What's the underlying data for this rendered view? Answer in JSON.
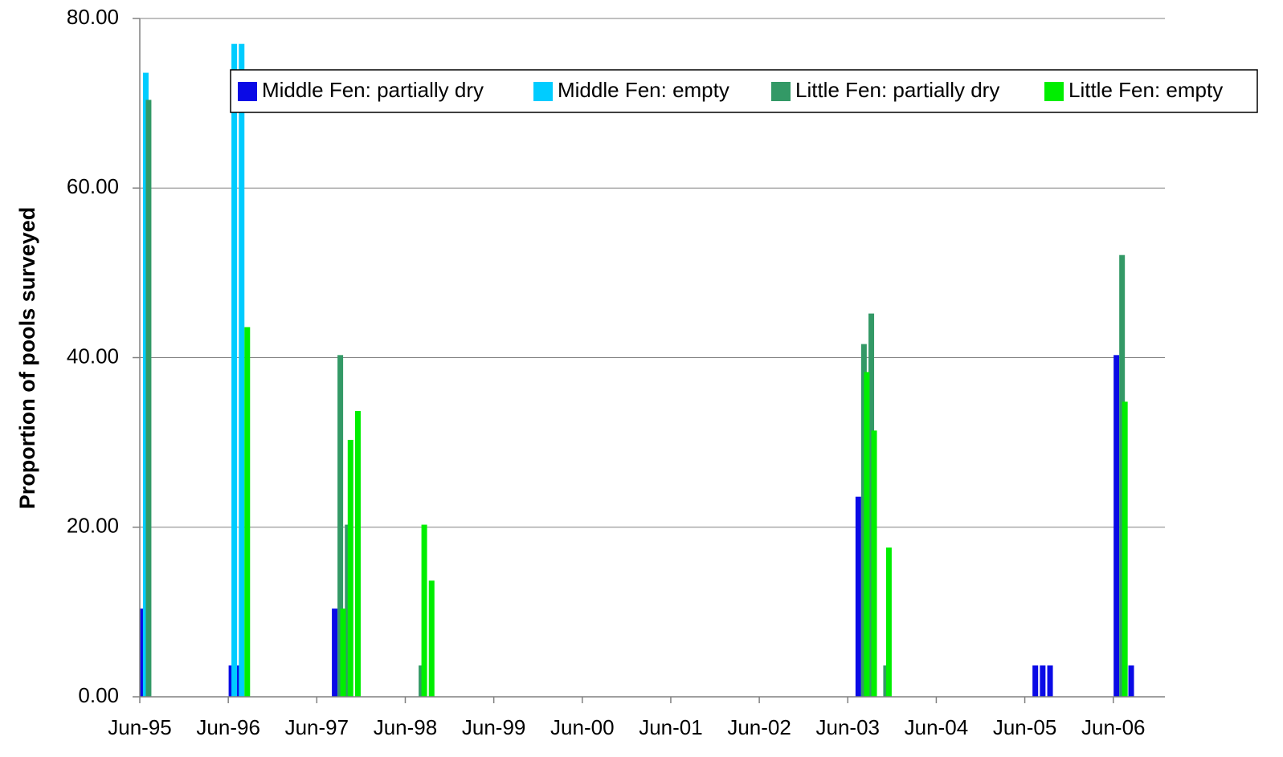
{
  "chart_data": {
    "type": "bar",
    "y_label": "Proportion of pools surveyed",
    "x": [
      "1995-07",
      "1996-07",
      "1996-08",
      "1997-09",
      "1997-10",
      "1997-11",
      "1998-08",
      "1998-09",
      "2003-08",
      "2003-09",
      "2003-11",
      "2005-08",
      "2005-09",
      "2005-10",
      "2006-07",
      "2006-09"
    ],
    "series": [
      {
        "name": "Middle Fen: partially dry",
        "color": "#0a0ae6",
        "values": [
          10.4,
          3.7,
          3.7,
          10.4,
          null,
          null,
          null,
          null,
          23.6,
          null,
          null,
          3.7,
          3.7,
          3.7,
          40.3,
          3.7
        ]
      },
      {
        "name": "Middle Fen: empty",
        "color": "#00ccff",
        "values": [
          73.6,
          77.0,
          77.0,
          null,
          null,
          null,
          null,
          null,
          null,
          null,
          null,
          null,
          null,
          null,
          null,
          null
        ]
      },
      {
        "name": "Little Fen: partially dry",
        "color": "#339966",
        "values": [
          70.4,
          null,
          null,
          40.3,
          20.3,
          null,
          3.7,
          null,
          41.6,
          45.2,
          3.7,
          null,
          null,
          null,
          52.1,
          null
        ]
      },
      {
        "name": "Little Fen: empty",
        "color": "#00ee00",
        "values": [
          null,
          null,
          43.6,
          10.4,
          30.3,
          33.7,
          20.3,
          13.7,
          38.3,
          31.4,
          17.6,
          null,
          null,
          null,
          34.8,
          null
        ]
      }
    ],
    "xlim": [
      "1995-06",
      "2007-01"
    ],
    "xticks": [
      {
        "value": "1995-06",
        "label": "Jun-95"
      },
      {
        "value": "1996-06",
        "label": "Jun-96"
      },
      {
        "value": "1997-06",
        "label": "Jun-97"
      },
      {
        "value": "1998-06",
        "label": "Jun-98"
      },
      {
        "value": "1999-06",
        "label": "Jun-99"
      },
      {
        "value": "2000-06",
        "label": "Jun-00"
      },
      {
        "value": "2001-06",
        "label": "Jun-01"
      },
      {
        "value": "2002-06",
        "label": "Jun-02"
      },
      {
        "value": "2003-06",
        "label": "Jun-03"
      },
      {
        "value": "2004-06",
        "label": "Jun-04"
      },
      {
        "value": "2005-06",
        "label": "Jun-05"
      },
      {
        "value": "2006-06",
        "label": "Jun-06"
      }
    ],
    "ylim": [
      0,
      80
    ],
    "yticks": [
      {
        "value": 0,
        "label": "0.00"
      },
      {
        "value": 20,
        "label": "20.00"
      },
      {
        "value": 40,
        "label": "40.00"
      },
      {
        "value": 60,
        "label": "60.00"
      },
      {
        "value": 80,
        "label": "80.00"
      }
    ],
    "grid": true,
    "legend": "top"
  }
}
